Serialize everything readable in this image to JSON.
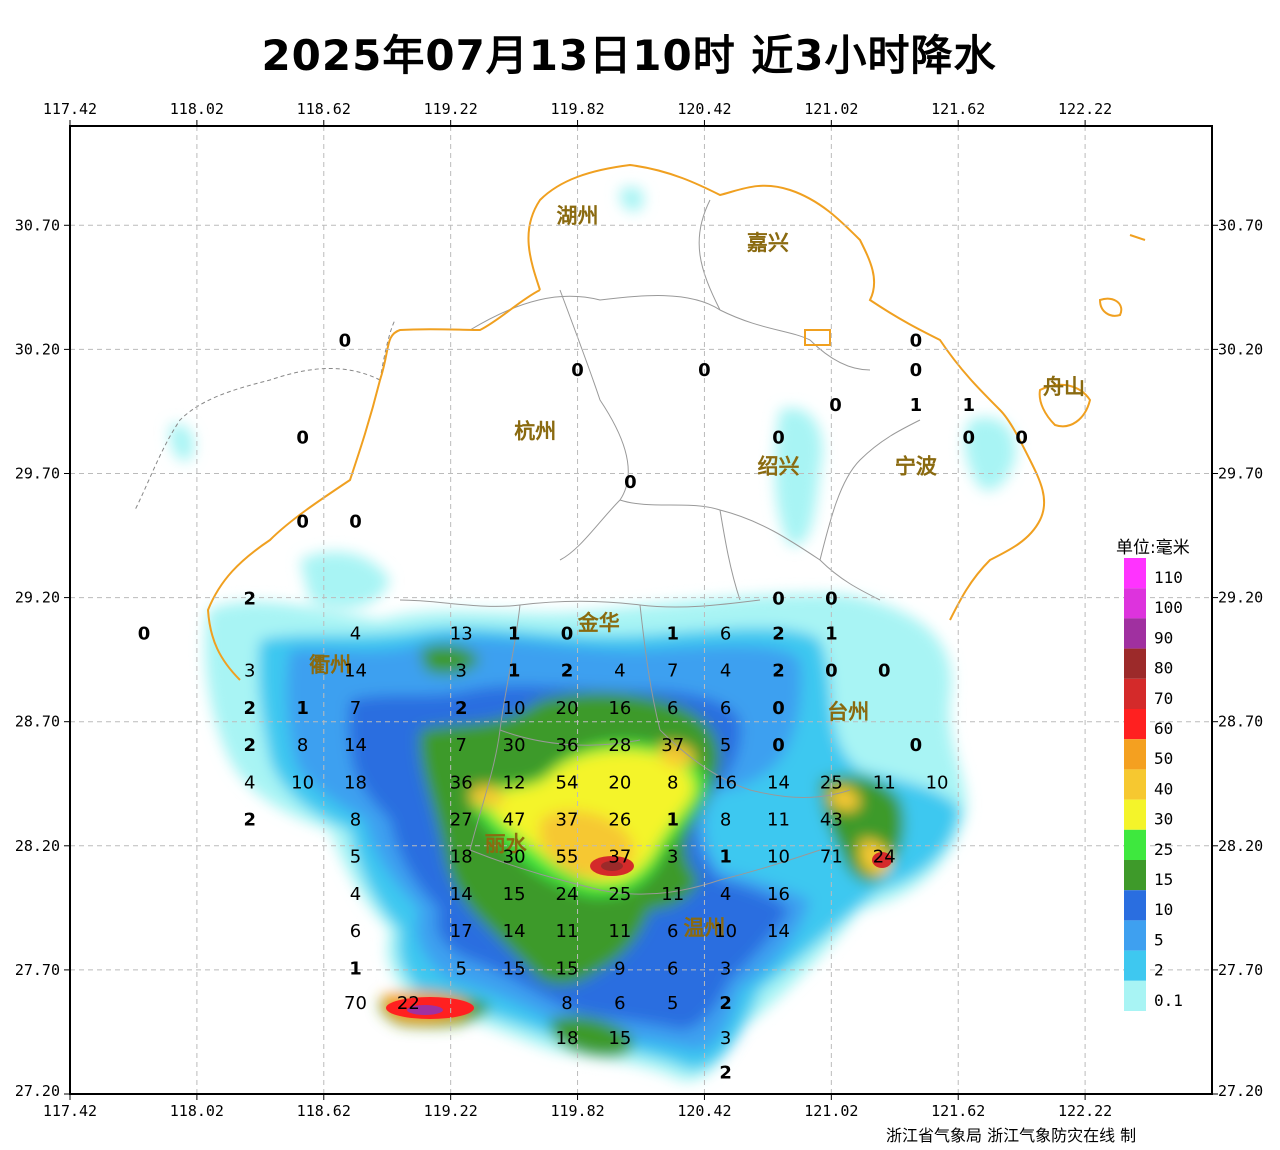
{
  "title": "2025年07月13日10时  近3小时降水",
  "credit": "浙江省气象局  浙江气象防灾在线 制",
  "axes": {
    "lon_ticks": [
      "117.42",
      "118.02",
      "118.62",
      "119.22",
      "119.82",
      "120.42",
      "121.02",
      "121.62",
      "122.22"
    ],
    "lat_ticks": [
      "30.70",
      "30.20",
      "29.70",
      "29.20",
      "28.70",
      "28.20",
      "27.70",
      "27.20"
    ],
    "lon_range": [
      117.42,
      122.82
    ],
    "lat_range": [
      27.2,
      31.1
    ]
  },
  "legend": {
    "title": "单位:毫米",
    "levels": [
      {
        "label": "110",
        "color": "#ff33ff"
      },
      {
        "label": "100",
        "color": "#dd33dd"
      },
      {
        "label": "90",
        "color": "#a030a0"
      },
      {
        "label": "80",
        "color": "#9c2a2a"
      },
      {
        "label": "70",
        "color": "#d42a2a"
      },
      {
        "label": "60",
        "color": "#ff2020"
      },
      {
        "label": "50",
        "color": "#f4a020"
      },
      {
        "label": "40",
        "color": "#f6c830"
      },
      {
        "label": "30",
        "color": "#f4f42a"
      },
      {
        "label": "25",
        "color": "#3ee83e"
      },
      {
        "label": "15",
        "color": "#3e9a2a"
      },
      {
        "label": "10",
        "color": "#2a6ee0"
      },
      {
        "label": "5",
        "color": "#3ea0f0"
      },
      {
        "label": "2",
        "color": "#3ec8f0"
      },
      {
        "label": "0.1",
        "color": "#a8f4f4"
      }
    ]
  },
  "cities": [
    {
      "name": "湖州",
      "lon": 119.82,
      "lat": 30.71
    },
    {
      "name": "嘉兴",
      "lon": 120.72,
      "lat": 30.6
    },
    {
      "name": "杭州",
      "lon": 119.62,
      "lat": 29.84
    },
    {
      "name": "绍兴",
      "lon": 120.77,
      "lat": 29.7
    },
    {
      "name": "宁波",
      "lon": 121.42,
      "lat": 29.7
    },
    {
      "name": "舟山",
      "lon": 122.12,
      "lat": 30.02
    },
    {
      "name": "金华",
      "lon": 119.92,
      "lat": 29.07
    },
    {
      "name": "衢州",
      "lon": 118.65,
      "lat": 28.9
    },
    {
      "name": "台州",
      "lon": 121.1,
      "lat": 28.71
    },
    {
      "name": "丽水",
      "lon": 119.48,
      "lat": 28.18
    },
    {
      "name": "温州",
      "lon": 120.42,
      "lat": 27.84
    }
  ],
  "stations": [
    {
      "v": "0",
      "lon": 118.72,
      "lat": 30.24
    },
    {
      "v": "0",
      "lon": 119.82,
      "lat": 30.12
    },
    {
      "v": "0",
      "lon": 120.42,
      "lat": 30.12
    },
    {
      "v": "0",
      "lon": 121.42,
      "lat": 30.24
    },
    {
      "v": "0",
      "lon": 121.42,
      "lat": 30.12
    },
    {
      "v": "0",
      "lon": 121.04,
      "lat": 29.98
    },
    {
      "v": "1",
      "lon": 121.42,
      "lat": 29.98
    },
    {
      "v": "1",
      "lon": 121.67,
      "lat": 29.98
    },
    {
      "v": "0",
      "lon": 118.52,
      "lat": 29.85
    },
    {
      "v": "0",
      "lon": 120.77,
      "lat": 29.85
    },
    {
      "v": "0",
      "lon": 121.67,
      "lat": 29.85
    },
    {
      "v": "0",
      "lon": 121.92,
      "lat": 29.85
    },
    {
      "v": "0",
      "lon": 120.07,
      "lat": 29.67
    },
    {
      "v": "0",
      "lon": 118.52,
      "lat": 29.51
    },
    {
      "v": "0",
      "lon": 118.77,
      "lat": 29.51
    },
    {
      "v": "2",
      "lon": 118.27,
      "lat": 29.2
    },
    {
      "v": "0",
      "lon": 120.77,
      "lat": 29.2
    },
    {
      "v": "0",
      "lon": 121.02,
      "lat": 29.2
    },
    {
      "v": "0",
      "lon": 117.77,
      "lat": 29.06
    },
    {
      "v": "4",
      "lon": 118.77,
      "lat": 29.06
    },
    {
      "v": "13",
      "lon": 119.27,
      "lat": 29.06
    },
    {
      "v": "1",
      "lon": 119.52,
      "lat": 29.06
    },
    {
      "v": "0",
      "lon": 119.77,
      "lat": 29.06
    },
    {
      "v": "1",
      "lon": 120.27,
      "lat": 29.06
    },
    {
      "v": "6",
      "lon": 120.52,
      "lat": 29.06
    },
    {
      "v": "2",
      "lon": 120.77,
      "lat": 29.06
    },
    {
      "v": "1",
      "lon": 121.02,
      "lat": 29.06
    },
    {
      "v": "3",
      "lon": 118.27,
      "lat": 28.91
    },
    {
      "v": "14",
      "lon": 118.77,
      "lat": 28.91
    },
    {
      "v": "3",
      "lon": 119.27,
      "lat": 28.91
    },
    {
      "v": "1",
      "lon": 119.52,
      "lat": 28.91
    },
    {
      "v": "2",
      "lon": 119.77,
      "lat": 28.91
    },
    {
      "v": "4",
      "lon": 120.02,
      "lat": 28.91
    },
    {
      "v": "7",
      "lon": 120.27,
      "lat": 28.91
    },
    {
      "v": "4",
      "lon": 120.52,
      "lat": 28.91
    },
    {
      "v": "2",
      "lon": 120.77,
      "lat": 28.91
    },
    {
      "v": "0",
      "lon": 121.02,
      "lat": 28.91
    },
    {
      "v": "0",
      "lon": 121.27,
      "lat": 28.91
    },
    {
      "v": "2",
      "lon": 118.27,
      "lat": 28.76
    },
    {
      "v": "1",
      "lon": 118.52,
      "lat": 28.76
    },
    {
      "v": "7",
      "lon": 118.77,
      "lat": 28.76
    },
    {
      "v": "2",
      "lon": 119.27,
      "lat": 28.76
    },
    {
      "v": "10",
      "lon": 119.52,
      "lat": 28.76
    },
    {
      "v": "20",
      "lon": 119.77,
      "lat": 28.76
    },
    {
      "v": "16",
      "lon": 120.02,
      "lat": 28.76
    },
    {
      "v": "6",
      "lon": 120.27,
      "lat": 28.76
    },
    {
      "v": "6",
      "lon": 120.52,
      "lat": 28.76
    },
    {
      "v": "0",
      "lon": 120.77,
      "lat": 28.76
    },
    {
      "v": "2",
      "lon": 118.27,
      "lat": 28.61
    },
    {
      "v": "8",
      "lon": 118.52,
      "lat": 28.61
    },
    {
      "v": "14",
      "lon": 118.77,
      "lat": 28.61
    },
    {
      "v": "7",
      "lon": 119.27,
      "lat": 28.61
    },
    {
      "v": "30",
      "lon": 119.52,
      "lat": 28.61
    },
    {
      "v": "36",
      "lon": 119.77,
      "lat": 28.61
    },
    {
      "v": "28",
      "lon": 120.02,
      "lat": 28.61
    },
    {
      "v": "37",
      "lon": 120.27,
      "lat": 28.61
    },
    {
      "v": "5",
      "lon": 120.52,
      "lat": 28.61
    },
    {
      "v": "0",
      "lon": 120.77,
      "lat": 28.61
    },
    {
      "v": "0",
      "lon": 121.42,
      "lat": 28.61
    },
    {
      "v": "4",
      "lon": 118.27,
      "lat": 28.46
    },
    {
      "v": "10",
      "lon": 118.52,
      "lat": 28.46
    },
    {
      "v": "18",
      "lon": 118.77,
      "lat": 28.46
    },
    {
      "v": "36",
      "lon": 119.27,
      "lat": 28.46
    },
    {
      "v": "12",
      "lon": 119.52,
      "lat": 28.46
    },
    {
      "v": "54",
      "lon": 119.77,
      "lat": 28.46
    },
    {
      "v": "20",
      "lon": 120.02,
      "lat": 28.46
    },
    {
      "v": "8",
      "lon": 120.27,
      "lat": 28.46
    },
    {
      "v": "16",
      "lon": 120.52,
      "lat": 28.46
    },
    {
      "v": "14",
      "lon": 120.77,
      "lat": 28.46
    },
    {
      "v": "25",
      "lon": 121.02,
      "lat": 28.46
    },
    {
      "v": "11",
      "lon": 121.27,
      "lat": 28.46
    },
    {
      "v": "10",
      "lon": 121.52,
      "lat": 28.46
    },
    {
      "v": "2",
      "lon": 118.27,
      "lat": 28.31
    },
    {
      "v": "8",
      "lon": 118.77,
      "lat": 28.31
    },
    {
      "v": "27",
      "lon": 119.27,
      "lat": 28.31
    },
    {
      "v": "47",
      "lon": 119.52,
      "lat": 28.31
    },
    {
      "v": "37",
      "lon": 119.77,
      "lat": 28.31
    },
    {
      "v": "26",
      "lon": 120.02,
      "lat": 28.31
    },
    {
      "v": "1",
      "lon": 120.27,
      "lat": 28.31
    },
    {
      "v": "8",
      "lon": 120.52,
      "lat": 28.31
    },
    {
      "v": "11",
      "lon": 120.77,
      "lat": 28.31
    },
    {
      "v": "43",
      "lon": 121.02,
      "lat": 28.31
    },
    {
      "v": "5",
      "lon": 118.77,
      "lat": 28.16
    },
    {
      "v": "18",
      "lon": 119.27,
      "lat": 28.16
    },
    {
      "v": "30",
      "lon": 119.52,
      "lat": 28.16
    },
    {
      "v": "55",
      "lon": 119.77,
      "lat": 28.16
    },
    {
      "v": "37",
      "lon": 120.02,
      "lat": 28.16
    },
    {
      "v": "3",
      "lon": 120.27,
      "lat": 28.16
    },
    {
      "v": "1",
      "lon": 120.52,
      "lat": 28.16
    },
    {
      "v": "10",
      "lon": 120.77,
      "lat": 28.16
    },
    {
      "v": "71",
      "lon": 121.02,
      "lat": 28.16
    },
    {
      "v": "24",
      "lon": 121.27,
      "lat": 28.16
    },
    {
      "v": "4",
      "lon": 118.77,
      "lat": 28.01
    },
    {
      "v": "14",
      "lon": 119.27,
      "lat": 28.01
    },
    {
      "v": "15",
      "lon": 119.52,
      "lat": 28.01
    },
    {
      "v": "24",
      "lon": 119.77,
      "lat": 28.01
    },
    {
      "v": "25",
      "lon": 120.02,
      "lat": 28.01
    },
    {
      "v": "11",
      "lon": 120.27,
      "lat": 28.01
    },
    {
      "v": "4",
      "lon": 120.52,
      "lat": 28.01
    },
    {
      "v": "16",
      "lon": 120.77,
      "lat": 28.01
    },
    {
      "v": "6",
      "lon": 118.77,
      "lat": 27.86
    },
    {
      "v": "17",
      "lon": 119.27,
      "lat": 27.86
    },
    {
      "v": "14",
      "lon": 119.52,
      "lat": 27.86
    },
    {
      "v": "11",
      "lon": 119.77,
      "lat": 27.86
    },
    {
      "v": "11",
      "lon": 120.02,
      "lat": 27.86
    },
    {
      "v": "6",
      "lon": 120.27,
      "lat": 27.86
    },
    {
      "v": "10",
      "lon": 120.52,
      "lat": 27.86
    },
    {
      "v": "14",
      "lon": 120.77,
      "lat": 27.86
    },
    {
      "v": "1",
      "lon": 118.77,
      "lat": 27.71
    },
    {
      "v": "5",
      "lon": 119.27,
      "lat": 27.71
    },
    {
      "v": "15",
      "lon": 119.52,
      "lat": 27.71
    },
    {
      "v": "15",
      "lon": 119.77,
      "lat": 27.71
    },
    {
      "v": "9",
      "lon": 120.02,
      "lat": 27.71
    },
    {
      "v": "6",
      "lon": 120.27,
      "lat": 27.71
    },
    {
      "v": "3",
      "lon": 120.52,
      "lat": 27.71
    },
    {
      "v": "70",
      "lon": 118.77,
      "lat": 27.57
    },
    {
      "v": "22",
      "lon": 119.02,
      "lat": 27.57
    },
    {
      "v": "8",
      "lon": 119.77,
      "lat": 27.57
    },
    {
      "v": "6",
      "lon": 120.02,
      "lat": 27.57
    },
    {
      "v": "5",
      "lon": 120.27,
      "lat": 27.57
    },
    {
      "v": "2",
      "lon": 120.52,
      "lat": 27.57
    },
    {
      "v": "18",
      "lon": 119.77,
      "lat": 27.43
    },
    {
      "v": "15",
      "lon": 120.02,
      "lat": 27.43
    },
    {
      "v": "3",
      "lon": 120.52,
      "lat": 27.43
    },
    {
      "v": "2",
      "lon": 120.52,
      "lat": 27.29
    }
  ]
}
